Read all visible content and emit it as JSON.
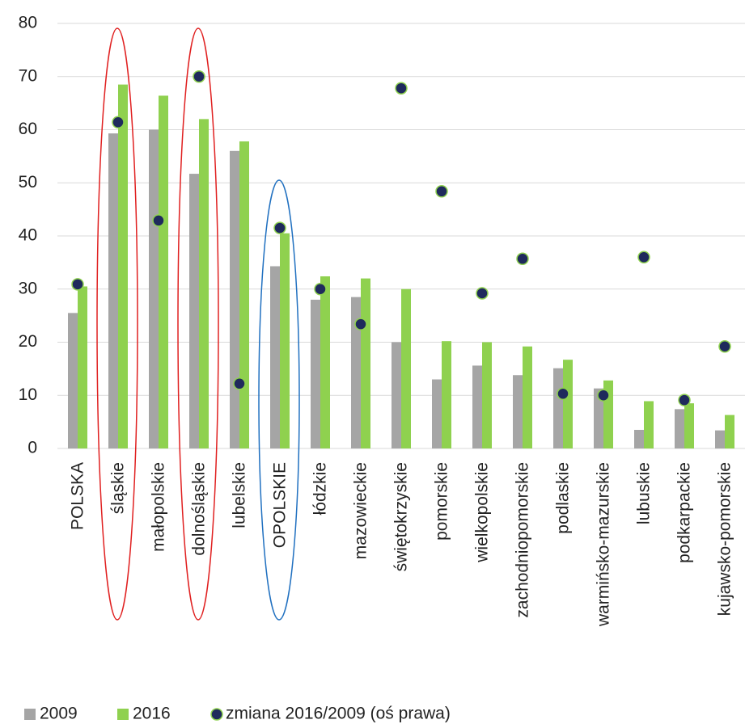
{
  "chart_data": {
    "type": "bar",
    "categories": [
      "POLSKA",
      "śląskie",
      "małopolskie",
      "dolnośląskie",
      "lubelskie",
      "OPOLSKIE",
      "łódzkie",
      "mazowieckie",
      "świętokrzyskie",
      "pomorskie",
      "wielkopolskie",
      "zachodniopomorskie",
      "podlaskie",
      "warmińsko-mazurskie",
      "lubuskie",
      "podkarpackie",
      "kujawsko-pomorskie"
    ],
    "series": [
      {
        "name": "2009",
        "color": "#a5a5a5",
        "values": [
          25.5,
          59.3,
          60,
          51.7,
          56,
          34.3,
          28,
          28.5,
          20,
          13,
          15.6,
          13.8,
          15.1,
          11.3,
          3.5,
          7.4,
          3.4
        ]
      },
      {
        "name": "2016",
        "color": "#8fd14f",
        "values": [
          30.5,
          68.5,
          66.4,
          62,
          57.8,
          40.5,
          32.4,
          32,
          30,
          20.2,
          20,
          19.2,
          16.7,
          12.8,
          8.9,
          8.5,
          6.3
        ]
      },
      {
        "name": "zmiana 2016/2009 (oś prawa)",
        "color": "#1f2a5c",
        "type": "scatter",
        "axis": "y2",
        "values": [
          30.9,
          61.4,
          42.9,
          70,
          12.2,
          41.5,
          30,
          23.4,
          67.8,
          48.4,
          29.2,
          35.7,
          10.3,
          10,
          36,
          9.1,
          19.2
        ]
      }
    ],
    "ylim": [
      0,
      80
    ],
    "yticks": [
      0,
      10,
      20,
      30,
      40,
      50,
      60,
      70,
      80
    ],
    "y2lim": [
      0,
      80
    ],
    "grid": true,
    "legend": "bottom"
  }
}
